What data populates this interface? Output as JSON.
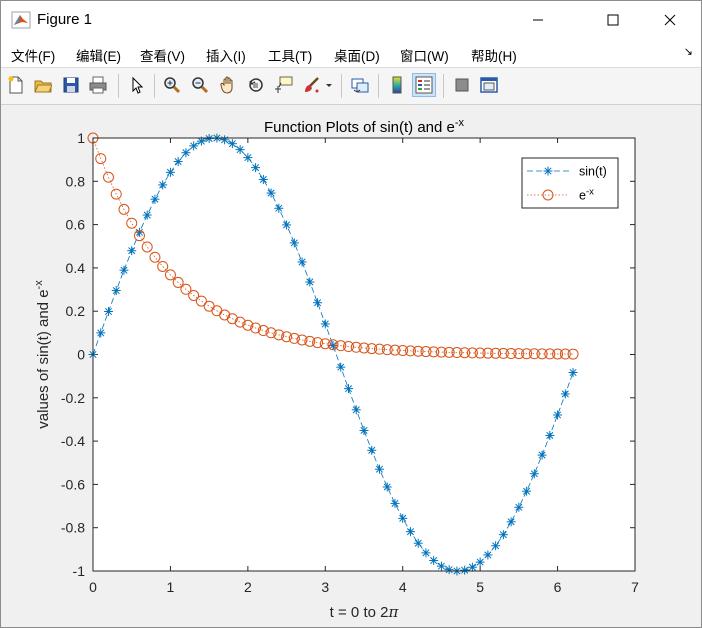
{
  "window": {
    "title": "Figure 1",
    "minimize_glyph": "—",
    "maximize_glyph": "☐",
    "close_glyph": "✕"
  },
  "menu": {
    "items": [
      {
        "label": "文件(F)"
      },
      {
        "label": "编辑(E)"
      },
      {
        "label": "查看(V)"
      },
      {
        "label": "插入(I)"
      },
      {
        "label": "工具(T)"
      },
      {
        "label": "桌面(D)"
      },
      {
        "label": "窗口(W)"
      },
      {
        "label": "帮助(H)"
      }
    ],
    "overflow_glyph": "↘"
  },
  "toolbar": {
    "icons": [
      "new-figure-icon",
      "open-file-icon",
      "save-icon",
      "print-icon",
      "edit-plot-arrow-icon",
      "zoom-in-icon",
      "zoom-out-icon",
      "pan-hand-icon",
      "rotate-3d-icon",
      "data-cursor-icon",
      "brush-icon",
      "brush-dropdown-icon",
      "link-plot-icon",
      "colorbar-icon",
      "legend-icon",
      "hide-plot-tools-icon",
      "show-plot-tools-icon"
    ],
    "active": "legend-icon"
  },
  "colors": {
    "sin": "#0072bd",
    "exp": "#d95319"
  },
  "chart_data": {
    "type": "line",
    "title": "Function Plots of sin(t) and e",
    "title_superscript": "-x",
    "xlabel_pre": "t = 0 to 2",
    "xlabel_symbol": "π",
    "ylabel_pre": "values of sin(t) and e",
    "ylabel_superscript": "-x",
    "xlim": [
      0,
      7
    ],
    "ylim": [
      -1,
      1
    ],
    "xticks": [
      "0",
      "1",
      "2",
      "3",
      "4",
      "5",
      "6",
      "7"
    ],
    "yticks": [
      "-1",
      "-0.8",
      "-0.6",
      "-0.4",
      "-0.2",
      "0",
      "0.2",
      "0.4",
      "0.6",
      "0.8",
      "1"
    ],
    "grid": false,
    "legend_position": "top-right",
    "x": [
      0,
      0.1,
      0.2,
      0.3,
      0.4,
      0.5,
      0.6,
      0.7,
      0.8,
      0.9,
      1.0,
      1.1,
      1.2,
      1.3,
      1.4,
      1.5,
      1.6,
      1.7,
      1.8,
      1.9,
      2.0,
      2.1,
      2.2,
      2.3,
      2.4,
      2.5,
      2.6,
      2.7,
      2.8,
      2.9,
      3.0,
      3.1,
      3.2,
      3.3,
      3.4,
      3.5,
      3.6,
      3.7,
      3.8,
      3.9,
      4.0,
      4.1,
      4.2,
      4.3,
      4.4,
      4.5,
      4.6,
      4.7,
      4.8,
      4.9,
      5.0,
      5.1,
      5.2,
      5.3,
      5.4,
      5.5,
      5.6,
      5.7,
      5.8,
      5.9,
      6.0,
      6.1,
      6.2
    ],
    "series": [
      {
        "name": "sin(t)",
        "legend_sup": "",
        "marker": "*",
        "line": "dashed",
        "values": [
          0,
          0.0998,
          0.1987,
          0.2955,
          0.3894,
          0.4794,
          0.5646,
          0.6442,
          0.7174,
          0.7833,
          0.8415,
          0.8912,
          0.932,
          0.9636,
          0.9854,
          0.9975,
          0.9996,
          0.9917,
          0.9738,
          0.9463,
          0.9093,
          0.8632,
          0.8085,
          0.7457,
          0.6755,
          0.5985,
          0.5155,
          0.4274,
          0.335,
          0.2392,
          0.1411,
          0.0416,
          -0.0584,
          -0.1577,
          -0.2555,
          -0.3508,
          -0.4425,
          -0.5298,
          -0.6119,
          -0.6878,
          -0.7568,
          -0.8183,
          -0.8716,
          -0.9162,
          -0.9516,
          -0.9775,
          -0.9937,
          -0.9999,
          -0.9962,
          -0.9825,
          -0.9589,
          -0.9258,
          -0.8835,
          -0.8323,
          -0.7728,
          -0.7055,
          -0.6313,
          -0.5507,
          -0.4646,
          -0.3739,
          -0.2794,
          -0.1822,
          -0.0831
        ]
      },
      {
        "name": "e",
        "legend_sup": "-x",
        "marker": "o",
        "line": "dotted",
        "values": [
          1,
          0.9048,
          0.8187,
          0.7408,
          0.6703,
          0.6065,
          0.5488,
          0.4966,
          0.4493,
          0.4066,
          0.3679,
          0.3329,
          0.3012,
          0.2725,
          0.2466,
          0.2231,
          0.2019,
          0.1827,
          0.1653,
          0.1496,
          0.1353,
          0.1225,
          0.1108,
          0.1003,
          0.0907,
          0.0821,
          0.0743,
          0.0672,
          0.0608,
          0.055,
          0.0498,
          0.045,
          0.0408,
          0.0369,
          0.0334,
          0.0302,
          0.0273,
          0.0247,
          0.0224,
          0.0202,
          0.0183,
          0.0166,
          0.015,
          0.0136,
          0.0123,
          0.0111,
          0.0101,
          0.0091,
          0.0082,
          0.0074,
          0.0067,
          0.0061,
          0.0055,
          0.005,
          0.0045,
          0.0041,
          0.0037,
          0.0033,
          0.003,
          0.0027,
          0.0025,
          0.0022,
          0.002
        ]
      }
    ]
  }
}
